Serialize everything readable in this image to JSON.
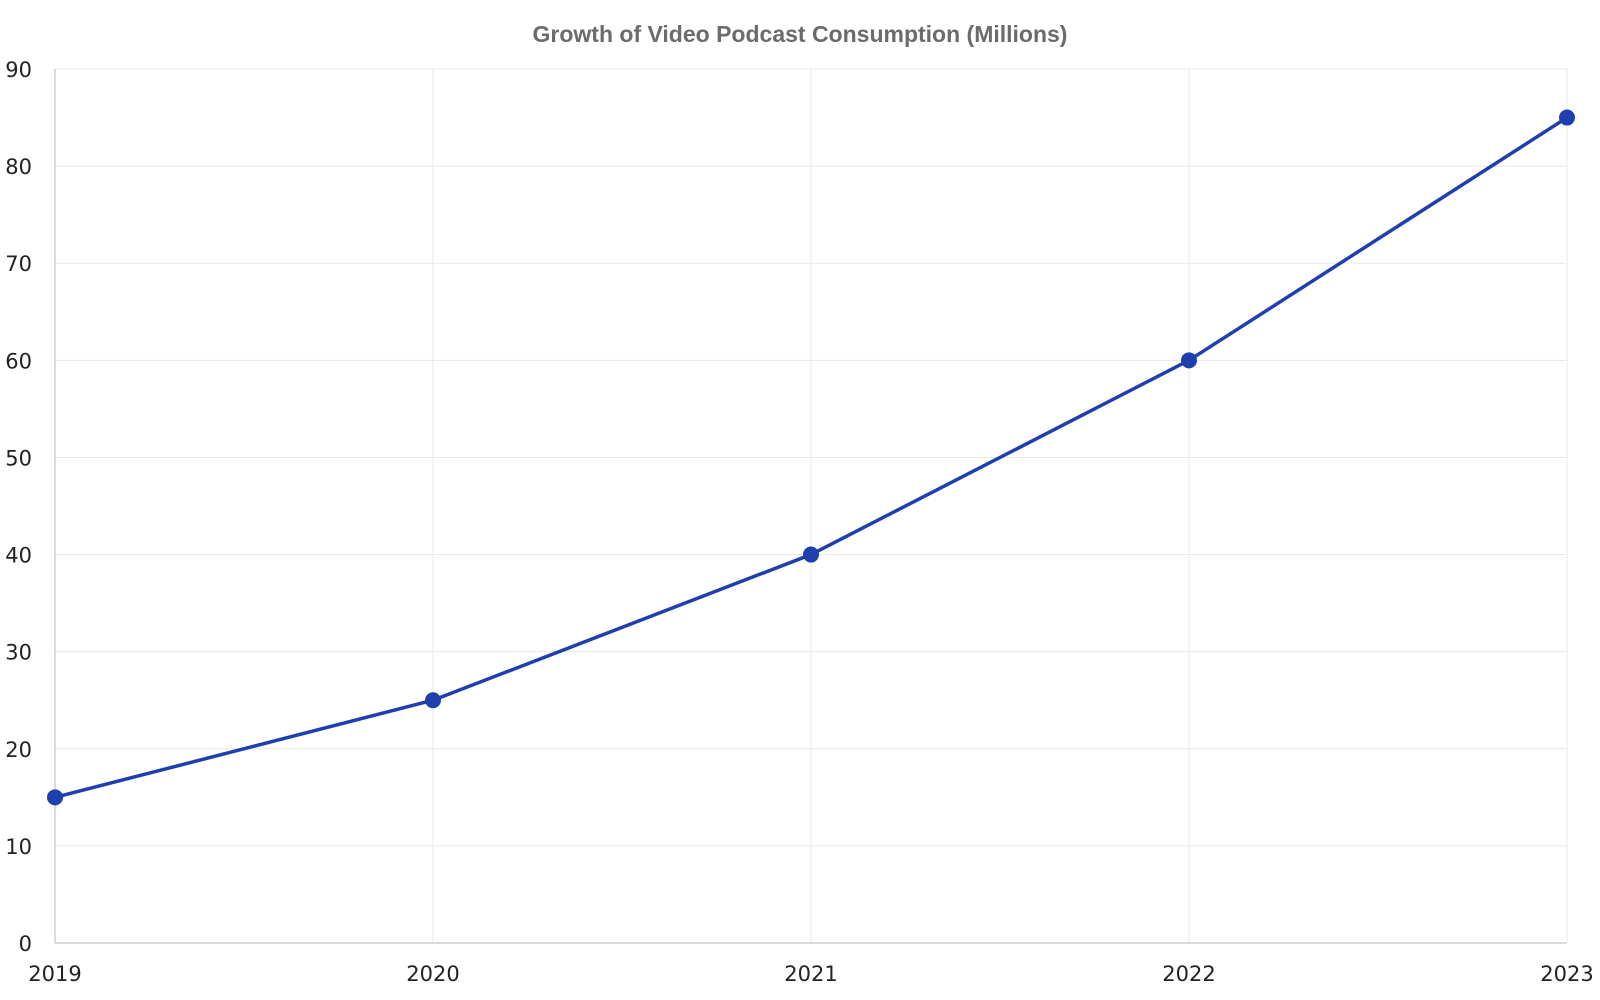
{
  "chart_data": {
    "type": "line",
    "title": "Growth of Video Podcast Consumption (Millions)",
    "xlabel": "",
    "ylabel": "",
    "x": [
      "2019",
      "2020",
      "2021",
      "2022",
      "2023"
    ],
    "series": [
      {
        "values": [
          15,
          25,
          40,
          60,
          85
        ],
        "color": "#1f3fae"
      }
    ],
    "ylim": [
      0,
      90
    ],
    "y_ticks": [
      0,
      10,
      20,
      30,
      40,
      50,
      60,
      70,
      80,
      90
    ],
    "grid": true,
    "legend": "none",
    "markers": true
  }
}
